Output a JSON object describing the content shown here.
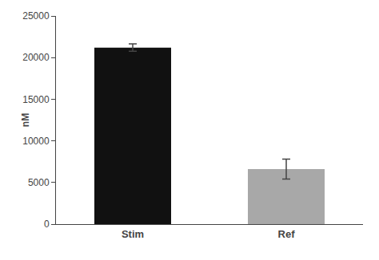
{
  "chart_data": {
    "type": "bar",
    "categories": [
      "Stim",
      "Ref"
    ],
    "values": [
      21200,
      6600
    ],
    "errors": [
      450,
      1200
    ],
    "colors": [
      "#111111",
      "#a8a8a8"
    ],
    "ylabel": "nM",
    "ylim": [
      0,
      25000
    ],
    "yticks": [
      0,
      5000,
      10000,
      15000,
      20000,
      25000
    ],
    "grid": false
  }
}
